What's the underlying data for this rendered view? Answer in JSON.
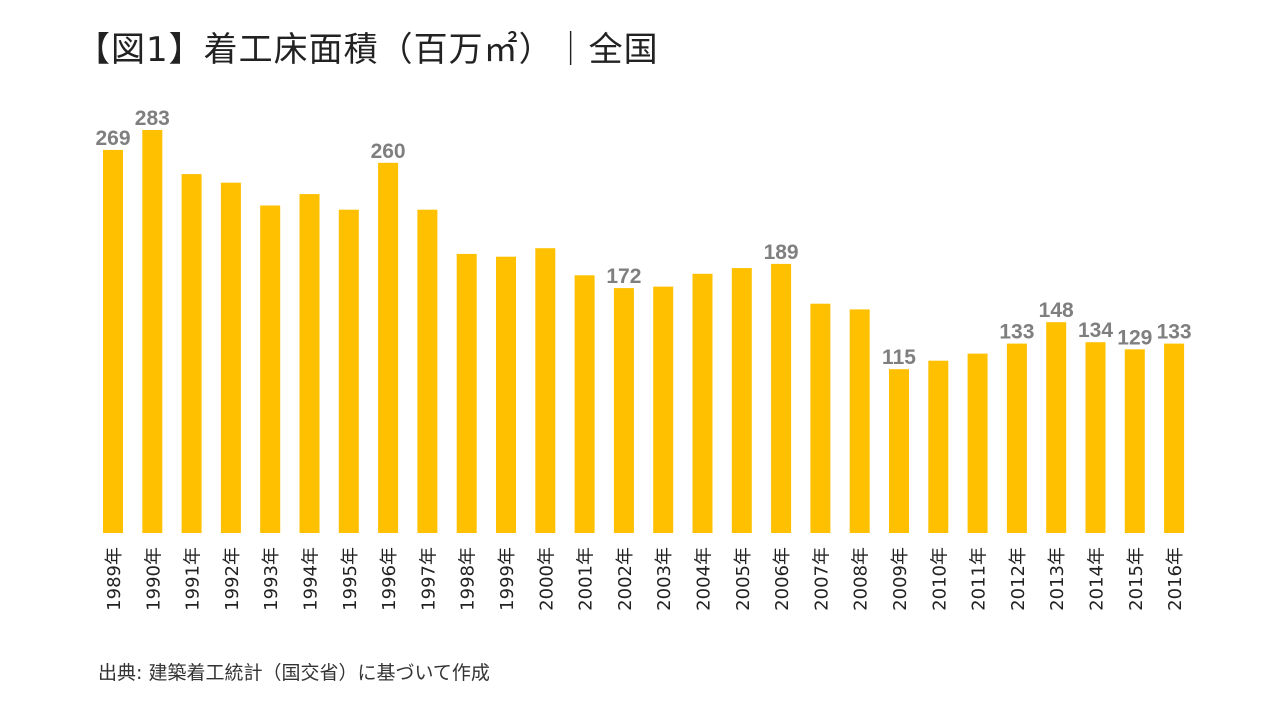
{
  "title": "【図1】着工床面積（百万㎡）｜全国",
  "source": "出典: 建築着工統計（国交省）に基づいて作成",
  "colors": {
    "bar": "#FFC000",
    "label": "#7F7F7F",
    "tick": "#222222"
  },
  "chart_data": {
    "type": "bar",
    "categories": [
      "1989年",
      "1990年",
      "1991年",
      "1992年",
      "1993年",
      "1994年",
      "1995年",
      "1996年",
      "1997年",
      "1998年",
      "1999年",
      "2000年",
      "2001年",
      "2002年",
      "2003年",
      "2004年",
      "2005年",
      "2006年",
      "2007年",
      "2008年",
      "2009年",
      "2010年",
      "2011年",
      "2012年",
      "2013年",
      "2014年",
      "2015年",
      "2016年"
    ],
    "values": [
      269,
      283,
      252,
      246,
      230,
      238,
      227,
      260,
      227,
      196,
      194,
      200,
      181,
      172,
      173,
      182,
      186,
      189,
      161,
      157,
      115,
      121,
      126,
      133,
      148,
      134,
      129,
      133
    ],
    "data_labels": {
      "1989年": "269",
      "1990年": "283",
      "1996年": "260",
      "2002年": "172",
      "2006年": "189",
      "2009年": "115",
      "2012年": "133",
      "2013年": "148",
      "2014年": "134",
      "2015年": "129",
      "2016年": "133"
    },
    "ylim": [
      0,
      283
    ],
    "grid": false,
    "xlabel": "",
    "ylabel": ""
  }
}
